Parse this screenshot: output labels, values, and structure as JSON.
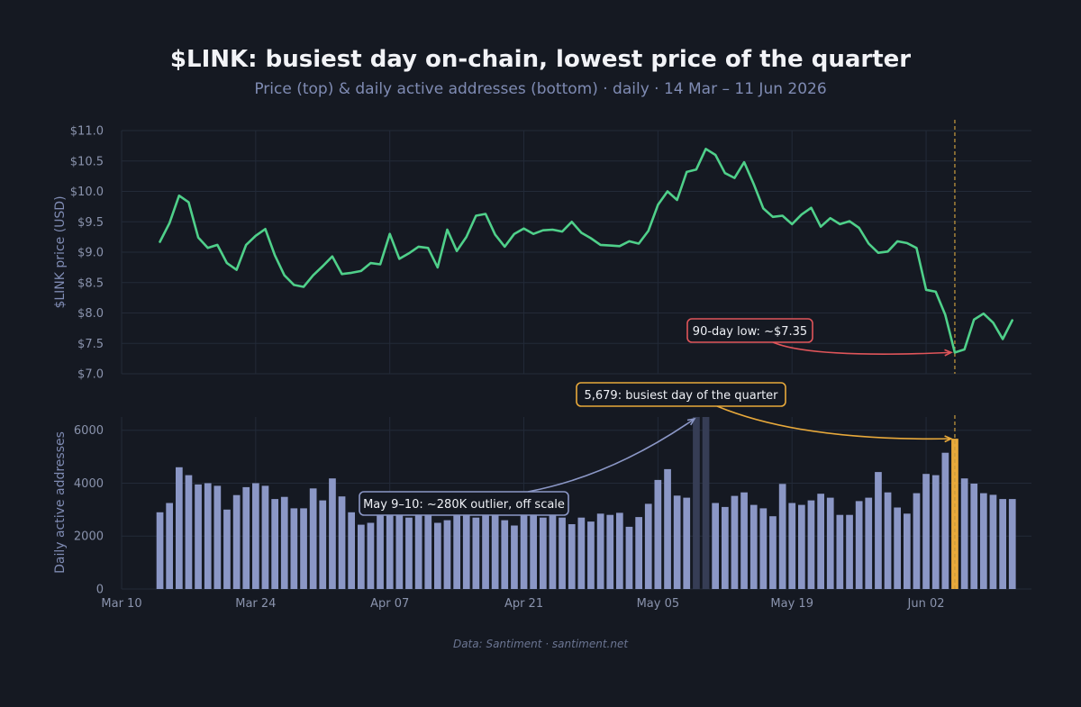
{
  "colors": {
    "background": "#151922",
    "grid": "#232a38",
    "price_line": "#4fd08a",
    "bar": "#8b97c6",
    "bar_outlier": "#363d55",
    "bar_highlight": "#e8a93b",
    "marker_line": "#c89a3e",
    "annotation_low": "#e0555a",
    "annotation_busiest": "#e8a93b",
    "annotation_outlier": "#8b97c6"
  },
  "chart_data": {
    "type": "line",
    "title": "$LINK: busiest day on-chain, lowest price of the quarter",
    "subtitle": "Price (top) & daily active addresses (bottom) · daily · 14 Mar – 11 Jun 2026",
    "source": "Data: Santiment · santiment.net",
    "x_start": "2026-03-14",
    "x_end": "2026-06-11",
    "xlim": [
      "2026-03-10",
      "2026-06-13"
    ],
    "x_ticks": [
      {
        "date": "2026-03-10",
        "label": "Mar 10"
      },
      {
        "date": "2026-03-24",
        "label": "Mar 24"
      },
      {
        "date": "2026-04-07",
        "label": "Apr 07"
      },
      {
        "date": "2026-04-21",
        "label": "Apr 21"
      },
      {
        "date": "2026-05-05",
        "label": "May 05"
      },
      {
        "date": "2026-05-19",
        "label": "May 19"
      },
      {
        "date": "2026-06-02",
        "label": "Jun 02"
      }
    ],
    "marker_date": "2026-06-05",
    "grid": true,
    "price": {
      "type": "line",
      "ylabel": "$LINK price (USD)",
      "ylim": [
        7.0,
        11.0
      ],
      "y_ticks": [
        7.0,
        7.5,
        8.0,
        8.5,
        9.0,
        9.5,
        10.0,
        10.5,
        11.0
      ],
      "y_tick_labels": [
        "$7.0",
        "$7.5",
        "$8.0",
        "$8.5",
        "$9.0",
        "$9.5",
        "$10.0",
        "$10.5",
        "$11.0"
      ],
      "values": [
        9.17,
        9.48,
        9.93,
        9.82,
        9.24,
        9.07,
        9.12,
        8.82,
        8.71,
        9.12,
        9.27,
        9.38,
        8.95,
        8.62,
        8.46,
        8.43,
        8.62,
        8.77,
        8.93,
        8.64,
        8.66,
        8.69,
        8.82,
        8.8,
        9.3,
        8.89,
        8.98,
        9.09,
        9.07,
        8.75,
        9.37,
        9.02,
        9.25,
        9.6,
        9.63,
        9.29,
        9.09,
        9.3,
        9.39,
        9.3,
        9.36,
        9.37,
        9.34,
        9.5,
        9.32,
        9.23,
        9.12,
        9.11,
        9.1,
        9.18,
        9.14,
        9.35,
        9.78,
        10.0,
        9.86,
        10.32,
        10.36,
        10.7,
        10.6,
        10.3,
        10.22,
        10.48,
        10.12,
        9.72,
        9.58,
        9.6,
        9.46,
        9.62,
        9.73,
        9.42,
        9.56,
        9.46,
        9.51,
        9.4,
        9.14,
        8.99,
        9.01,
        9.18,
        9.15,
        9.07,
        8.38,
        8.35,
        7.97,
        7.35,
        7.4,
        7.89,
        7.99,
        7.84,
        7.57,
        7.88
      ]
    },
    "active_addresses": {
      "type": "bar",
      "ylabel": "Daily active addresses",
      "ylim": [
        0,
        6500
      ],
      "y_ticks": [
        0,
        2000,
        4000,
        6000
      ],
      "y_tick_labels": [
        "0",
        "2000",
        "4000",
        "6000"
      ],
      "values": [
        2900,
        3250,
        4600,
        4300,
        3950,
        4000,
        3900,
        3000,
        3550,
        3850,
        4000,
        3900,
        3400,
        3480,
        3050,
        3050,
        3800,
        3350,
        4180,
        3500,
        2900,
        2430,
        2500,
        2800,
        2800,
        2800,
        2700,
        2800,
        3000,
        2500,
        2600,
        2800,
        2900,
        2700,
        2800,
        2800,
        2600,
        2400,
        2850,
        2850,
        2700,
        2800,
        2700,
        2450,
        2700,
        2550,
        2850,
        2800,
        2880,
        2350,
        2720,
        3220,
        4120,
        4530,
        3530,
        3450,
        6500,
        6500,
        3250,
        3100,
        3520,
        3650,
        3180,
        3050,
        2750,
        3970,
        3250,
        3180,
        3350,
        3600,
        3450,
        2800,
        2800,
        3320,
        3450,
        4420,
        3650,
        3080,
        2850,
        3620,
        4350,
        4300,
        5150,
        5679,
        4180,
        3980,
        3620,
        3560,
        3400,
        3400
      ],
      "outlier_dates": [
        "2026-05-09",
        "2026-05-10"
      ],
      "highlight_date": "2026-06-05"
    },
    "annotations": [
      {
        "panel": "price",
        "text": "90-day low: ~$7.35",
        "target_date": "2026-06-05",
        "target_value": 7.35
      },
      {
        "panel": "active_addresses",
        "text": "5,679: busiest day of the quarter",
        "target_date": "2026-06-05",
        "target_value": 5679
      },
      {
        "panel": "active_addresses",
        "text": "May 9–10: ~280K outlier, off scale",
        "target_date": "2026-05-09",
        "target_value": 6500
      }
    ]
  }
}
